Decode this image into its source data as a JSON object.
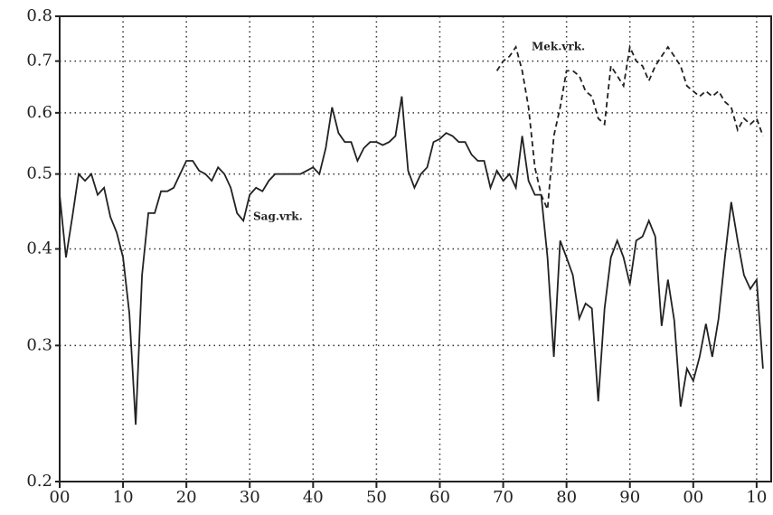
{
  "chart_data": {
    "type": "line",
    "x": [
      1900,
      1901,
      1902,
      1903,
      1904,
      1905,
      1906,
      1907,
      1908,
      1909,
      1910,
      1911,
      1912,
      1913,
      1914,
      1915,
      1916,
      1917,
      1918,
      1919,
      1920,
      1921,
      1922,
      1923,
      1924,
      1925,
      1926,
      1927,
      1928,
      1929,
      1930,
      1931,
      1932,
      1933,
      1934,
      1935,
      1936,
      1937,
      1938,
      1939,
      1940,
      1941,
      1942,
      1943,
      1944,
      1945,
      1946,
      1947,
      1948,
      1949,
      1950,
      1951,
      1952,
      1953,
      1954,
      1955,
      1956,
      1957,
      1958,
      1959,
      1960,
      1961,
      1962,
      1963,
      1964,
      1965,
      1966,
      1967,
      1968,
      1969,
      1970,
      1971,
      1972,
      1973,
      1974,
      1975,
      1976,
      1977,
      1978,
      1979,
      1980,
      1981,
      1982,
      1983,
      1984,
      1985,
      1986,
      1987,
      1988,
      1989,
      1990,
      1991,
      1992,
      1993,
      1994,
      1995,
      1996,
      1997,
      1998,
      1999,
      2000,
      2001,
      2002,
      2003,
      2004,
      2005,
      2006,
      2007,
      2008,
      2009,
      2010,
      2011
    ],
    "series": [
      {
        "name": "Sag.vrk.",
        "color": "#222222",
        "line_style": "solid",
        "values": [
          0.47,
          0.39,
          0.44,
          0.5,
          0.49,
          0.5,
          0.47,
          0.48,
          0.44,
          0.42,
          0.39,
          0.33,
          0.237,
          0.37,
          0.445,
          0.445,
          0.475,
          0.475,
          0.48,
          0.5,
          0.52,
          0.52,
          0.505,
          0.5,
          0.49,
          0.51,
          0.5,
          0.48,
          0.445,
          0.435,
          0.47,
          0.48,
          0.475,
          0.49,
          0.5,
          0.5,
          0.5,
          0.5,
          0.5,
          0.505,
          0.51,
          0.5,
          0.54,
          0.61,
          0.565,
          0.55,
          0.55,
          0.52,
          0.54,
          0.55,
          0.55,
          0.545,
          0.55,
          0.56,
          0.63,
          0.505,
          0.48,
          0.5,
          0.51,
          0.55,
          0.555,
          0.565,
          0.56,
          0.55,
          0.55,
          0.53,
          0.52,
          0.52,
          0.48,
          0.505,
          0.49,
          0.5,
          0.48,
          0.56,
          0.49,
          0.47,
          0.47,
          0.39,
          0.29,
          0.41,
          0.39,
          0.37,
          0.325,
          0.34,
          0.335,
          0.254,
          0.335,
          0.39,
          0.41,
          0.39,
          0.36,
          0.41,
          0.415,
          0.435,
          0.415,
          0.318,
          0.365,
          0.323,
          0.25,
          0.28,
          0.27,
          0.29,
          0.32,
          0.29,
          0.325,
          0.39,
          0.46,
          0.41,
          0.37,
          0.355,
          0.365,
          0.28
        ]
      },
      {
        "name": "Mek.vrk.",
        "color": "#222222",
        "line_style": "dashed",
        "values": [
          null,
          null,
          null,
          null,
          null,
          null,
          null,
          null,
          null,
          null,
          null,
          null,
          null,
          null,
          null,
          null,
          null,
          null,
          null,
          null,
          null,
          null,
          null,
          null,
          null,
          null,
          null,
          null,
          null,
          null,
          null,
          null,
          null,
          null,
          null,
          null,
          null,
          null,
          null,
          null,
          null,
          null,
          null,
          null,
          null,
          null,
          null,
          null,
          null,
          null,
          null,
          null,
          null,
          null,
          null,
          null,
          null,
          null,
          null,
          null,
          null,
          null,
          null,
          null,
          null,
          null,
          null,
          null,
          null,
          0.68,
          0.7,
          0.71,
          0.73,
          0.68,
          0.61,
          0.51,
          0.47,
          0.45,
          0.56,
          0.61,
          0.68,
          0.68,
          0.67,
          0.64,
          0.63,
          0.59,
          0.58,
          0.69,
          0.67,
          0.65,
          0.73,
          0.7,
          0.69,
          0.66,
          0.69,
          0.71,
          0.73,
          0.71,
          0.69,
          0.65,
          0.64,
          0.63,
          0.64,
          0.63,
          0.64,
          0.62,
          0.61,
          0.57,
          0.59,
          0.58,
          0.59,
          0.56
        ]
      }
    ],
    "xlim": [
      1900,
      2012.3
    ],
    "xticks": [
      {
        "value": 1900,
        "label": "00"
      },
      {
        "value": 1910,
        "label": "10"
      },
      {
        "value": 1920,
        "label": "20"
      },
      {
        "value": 1930,
        "label": "30"
      },
      {
        "value": 1940,
        "label": "40"
      },
      {
        "value": 1950,
        "label": "50"
      },
      {
        "value": 1960,
        "label": "60"
      },
      {
        "value": 1970,
        "label": "70"
      },
      {
        "value": 1980,
        "label": "80"
      },
      {
        "value": 1990,
        "label": "90"
      },
      {
        "value": 2000,
        "label": "00"
      },
      {
        "value": 2010,
        "label": "10"
      }
    ],
    "ylim": [
      0.2,
      0.8
    ],
    "yticks": [
      0.2,
      0.3,
      0.4,
      0.5,
      0.6,
      0.7,
      0.8
    ],
    "log_y": true,
    "grid": true
  }
}
